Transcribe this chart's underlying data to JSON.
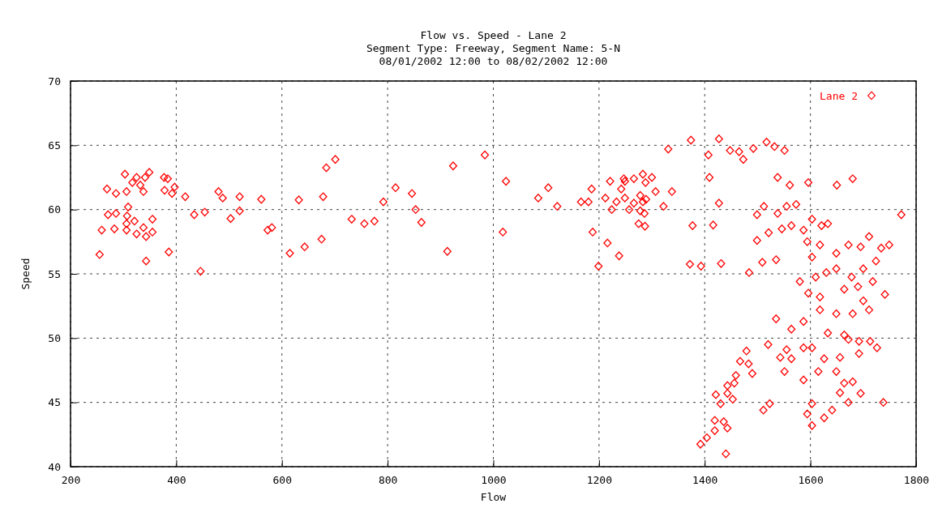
{
  "chart_data": {
    "type": "scatter",
    "title": "Flow vs. Speed - Lane 2",
    "subtitle": "Segment Type: Freeway, Segment Name: 5-N\n08/01/2002 12:00 to 08/02/2002 12:00",
    "xlabel": "Flow",
    "ylabel": "Speed",
    "xlim": [
      200,
      1800
    ],
    "xticks": [
      200,
      400,
      600,
      800,
      1000,
      1200,
      1400,
      1600,
      1800
    ],
    "ylim": [
      40,
      70
    ],
    "yticks": [
      40,
      45,
      50,
      55,
      60,
      65,
      70
    ],
    "grid": true,
    "legend": "top right",
    "marker": "diamond",
    "series": [
      {
        "name": "Lane 2",
        "color": "#ff0000",
        "x": [
          303,
          349,
          325,
          341,
          377,
          384,
          317,
          332,
          269,
          286,
          306,
          338,
          378,
          392,
          397,
          417,
          480,
          488,
          520,
          561,
          632,
          678,
          684,
          701,
          792,
          309,
          271,
          286,
          307,
          355,
          321,
          306,
          338,
          259,
          283,
          306,
          325,
          343,
          355,
          434,
          454,
          503,
          520,
          581,
          573,
          732,
          756,
          775,
          675,
          643,
          615,
          255,
          386,
          343,
          446,
          815,
          846,
          853,
          864,
          913,
          924,
          984,
          1024,
          1018,
          1085,
          1104,
          1121,
          1166,
          1180,
          1186,
          1188,
          1216,
          1199,
          1238,
          1212,
          1221,
          1224,
          1233,
          1242,
          1247,
          1249,
          1249,
          1266,
          1283,
          1300,
          1288,
          1257,
          1266,
          1278,
          1289,
          1283,
          1278,
          1286,
          1307,
          1338,
          1322,
          1275,
          1287,
          1377,
          1374,
          1331,
          1407,
          1409,
          1372,
          1393,
          1427,
          1448,
          1465,
          1473,
          1492,
          1517,
          1532,
          1551,
          1538,
          1561,
          1596,
          1650,
          1680,
          1427,
          1416,
          1431,
          1512,
          1499,
          1521,
          1499,
          1484,
          1509,
          1535,
          1538,
          1555,
          1573,
          1546,
          1564,
          1587,
          1603,
          1621,
          1633,
          1594,
          1618,
          1603,
          1649,
          1672,
          1695,
          1711,
          1734,
          1749,
          1772,
          1724,
          1700,
          1678,
          1649,
          1630,
          1610,
          1580,
          1596,
          1618,
          1664,
          1690,
          1718,
          1741,
          1700,
          1618,
          1649,
          1680,
          1711,
          1535,
          1587,
          1564,
          1633,
          1664,
          1520,
          1555,
          1587,
          1603,
          1626,
          1656,
          1692,
          1726,
          1692,
          1672,
          1713,
          1649,
          1680,
          1664,
          1615,
          1587,
          1551,
          1543,
          1564,
          1656,
          1672,
          1695,
          1738,
          1641,
          1603,
          1594,
          1603,
          1626,
          1523,
          1511,
          1479,
          1483,
          1490,
          1467,
          1459,
          1456,
          1443,
          1443,
          1421,
          1430,
          1453,
          1419,
          1436,
          1443,
          1419,
          1404,
          1392,
          1440
        ],
        "values": [
          62.75,
          62.9,
          62.5,
          62.5,
          62.5,
          62.4,
          62.1,
          61.9,
          61.6,
          61.25,
          61.4,
          61.4,
          61.5,
          61.25,
          61.75,
          61.0,
          61.4,
          60.9,
          61.0,
          60.8,
          60.75,
          61.0,
          63.25,
          63.9,
          60.6,
          60.2,
          59.6,
          59.7,
          59.5,
          59.25,
          59.1,
          58.9,
          58.6,
          58.4,
          58.5,
          58.4,
          58.1,
          57.9,
          58.25,
          59.6,
          59.8,
          59.3,
          59.9,
          58.6,
          58.4,
          59.25,
          58.9,
          59.1,
          57.7,
          57.1,
          56.6,
          56.5,
          56.7,
          56.0,
          55.2,
          61.7,
          61.25,
          60.0,
          59.0,
          56.75,
          63.4,
          64.25,
          62.2,
          58.25,
          60.9,
          61.7,
          60.25,
          60.6,
          60.6,
          61.6,
          58.25,
          57.4,
          55.6,
          56.4,
          60.9,
          62.2,
          60.0,
          60.6,
          61.6,
          62.4,
          62.2,
          60.9,
          62.4,
          62.75,
          62.5,
          62.1,
          60.0,
          60.5,
          61.1,
          60.8,
          60.6,
          59.9,
          59.7,
          61.4,
          61.4,
          60.25,
          58.9,
          58.7,
          58.75,
          65.4,
          64.7,
          64.25,
          62.5,
          55.75,
          55.6,
          65.5,
          64.6,
          64.5,
          63.9,
          64.75,
          65.25,
          64.9,
          64.6,
          62.5,
          61.9,
          62.1,
          61.9,
          62.4,
          60.5,
          58.8,
          55.8,
          60.25,
          59.6,
          58.2,
          57.6,
          55.1,
          55.9,
          56.1,
          59.7,
          60.25,
          60.4,
          58.5,
          58.75,
          58.4,
          59.25,
          58.75,
          58.9,
          57.5,
          57.25,
          56.3,
          56.6,
          57.25,
          57.1,
          57.9,
          57.0,
          57.25,
          59.6,
          56.0,
          55.4,
          54.75,
          55.4,
          55.1,
          54.75,
          54.4,
          53.5,
          53.2,
          53.8,
          54.0,
          54.4,
          53.4,
          52.9,
          52.2,
          51.9,
          51.9,
          52.2,
          51.5,
          51.3,
          50.7,
          50.4,
          50.25,
          49.5,
          49.1,
          49.25,
          49.25,
          48.4,
          48.5,
          48.8,
          49.25,
          49.75,
          49.9,
          49.75,
          47.4,
          46.6,
          46.5,
          47.4,
          46.75,
          47.4,
          48.5,
          48.4,
          45.75,
          45.0,
          45.7,
          45.0,
          44.4,
          44.9,
          44.1,
          43.2,
          43.8,
          44.9,
          44.4,
          49.0,
          48.0,
          47.25,
          48.2,
          47.1,
          46.5,
          46.3,
          45.7,
          45.6,
          44.9,
          45.25,
          43.6,
          43.5,
          43.0,
          42.8,
          42.25,
          41.75,
          41.0
        ]
      }
    ]
  }
}
